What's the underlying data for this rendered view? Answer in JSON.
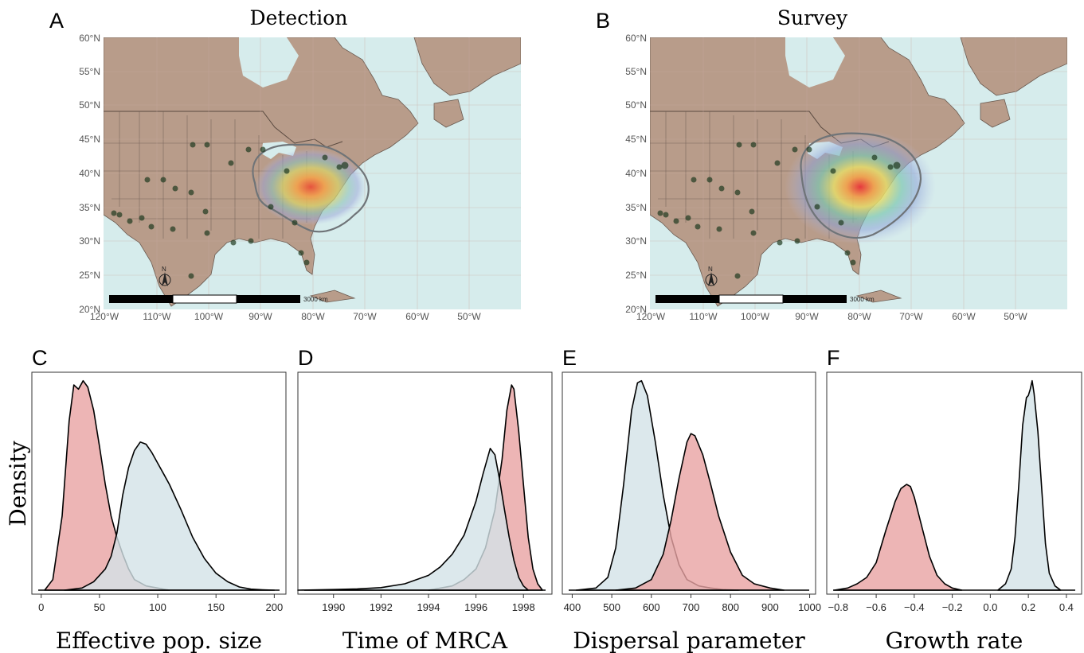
{
  "panels": {
    "map_a": {
      "letter": "A",
      "title": "Detection"
    },
    "map_b": {
      "letter": "B",
      "title": "Survey"
    }
  },
  "map_axes": {
    "lat_labels": [
      "60°N",
      "55°N",
      "50°N",
      "45°N",
      "40°N",
      "35°N",
      "30°N",
      "25°N",
      "20°N"
    ],
    "lon_labels": [
      "120°W",
      "110°W",
      "100°W",
      "90°W",
      "80°W",
      "70°W",
      "60°W",
      "50°W"
    ],
    "scale_bar_label": "3000 km",
    "north_arrow_label": "N"
  },
  "colors": {
    "ocean": "#d6ecec",
    "land": "#b89c8a",
    "border": "#5a4a40",
    "pink_series": "#e8a3a3",
    "blue_series": "#d3e2e7"
  },
  "chart_data": [
    {
      "type": "area",
      "letter": "C",
      "xlabel": "Effective pop. size",
      "ylabel": "Density",
      "xlim": [
        -8,
        210
      ],
      "xticks": [
        0,
        50,
        100,
        150,
        200
      ],
      "tick_labels": [
        "0",
        "50",
        "100",
        "150",
        "200"
      ],
      "series": [
        {
          "color": "#e8a3a3",
          "x": [
            3,
            10,
            18,
            24,
            28,
            32,
            36,
            40,
            45,
            50,
            55,
            60,
            65,
            70,
            75,
            80,
            90,
            100,
            110
          ],
          "y": [
            0,
            0.05,
            0.35,
            0.8,
            0.97,
            0.95,
            0.99,
            0.96,
            0.85,
            0.68,
            0.5,
            0.35,
            0.25,
            0.17,
            0.1,
            0.05,
            0.02,
            0.01,
            0
          ]
        },
        {
          "color": "#d3e2e7",
          "x": [
            20,
            35,
            45,
            55,
            60,
            65,
            70,
            75,
            80,
            85,
            90,
            95,
            100,
            105,
            110,
            115,
            120,
            130,
            140,
            150,
            160,
            170,
            180,
            190,
            200
          ],
          "y": [
            0,
            0.01,
            0.04,
            0.1,
            0.16,
            0.27,
            0.45,
            0.58,
            0.66,
            0.7,
            0.69,
            0.65,
            0.6,
            0.55,
            0.5,
            0.44,
            0.38,
            0.25,
            0.15,
            0.08,
            0.04,
            0.015,
            0.005,
            0.002,
            0
          ]
        }
      ]
    },
    {
      "type": "area",
      "letter": "D",
      "xlabel": "Time of MRCA",
      "xlim": [
        1988.5,
        1999.2
      ],
      "xticks": [
        1990,
        1992,
        1994,
        1996,
        1998
      ],
      "tick_labels": [
        "1990",
        "1992",
        "1994",
        "1996",
        "1998"
      ],
      "series": [
        {
          "color": "#e8a3a3",
          "x": [
            1994,
            1995,
            1995.5,
            1996,
            1996.4,
            1996.8,
            1997.1,
            1997.3,
            1997.5,
            1997.6,
            1997.8,
            1998,
            1998.2,
            1998.4,
            1998.6,
            1998.8
          ],
          "y": [
            0,
            0.02,
            0.05,
            0.1,
            0.2,
            0.38,
            0.62,
            0.85,
            0.97,
            0.95,
            0.75,
            0.5,
            0.25,
            0.1,
            0.03,
            0
          ]
        },
        {
          "color": "#d3e2e7",
          "x": [
            1988.5,
            1990,
            1991,
            1992,
            1993,
            1994,
            1994.5,
            1995,
            1995.5,
            1996,
            1996.3,
            1996.6,
            1996.8,
            1997,
            1997.2,
            1997.4,
            1997.6,
            1997.8,
            1998,
            1998.2
          ],
          "y": [
            0,
            0.003,
            0.006,
            0.012,
            0.03,
            0.07,
            0.11,
            0.17,
            0.26,
            0.42,
            0.55,
            0.67,
            0.64,
            0.52,
            0.38,
            0.25,
            0.14,
            0.06,
            0.02,
            0
          ]
        }
      ]
    },
    {
      "type": "area",
      "letter": "E",
      "xlabel": "Dispersal parameter",
      "xlim": [
        375,
        1015
      ],
      "xticks": [
        400,
        500,
        600,
        700,
        800,
        900,
        1000
      ],
      "tick_labels": [
        "400",
        "500",
        "600",
        "700",
        "800",
        "900",
        "1000"
      ],
      "series": [
        {
          "color": "#d3e2e7",
          "x": [
            410,
            460,
            490,
            510,
            530,
            550,
            565,
            575,
            590,
            610,
            630,
            650,
            670,
            690,
            720,
            750,
            780,
            820
          ],
          "y": [
            0,
            0.01,
            0.06,
            0.2,
            0.5,
            0.85,
            0.98,
            0.99,
            0.92,
            0.7,
            0.45,
            0.25,
            0.12,
            0.05,
            0.02,
            0.01,
            0.003,
            0
          ]
        },
        {
          "color": "#e8a3a3",
          "x": [
            510,
            560,
            600,
            630,
            650,
            670,
            690,
            700,
            710,
            730,
            750,
            770,
            800,
            830,
            860,
            900,
            935
          ],
          "y": [
            0,
            0.01,
            0.05,
            0.17,
            0.33,
            0.53,
            0.7,
            0.74,
            0.73,
            0.64,
            0.5,
            0.35,
            0.18,
            0.07,
            0.03,
            0.01,
            0
          ]
        }
      ]
    },
    {
      "type": "area",
      "letter": "F",
      "xlabel": "Growth rate",
      "xlim": [
        -0.86,
        0.48
      ],
      "xticks": [
        -0.8,
        -0.6,
        -0.4,
        -0.2,
        0.0,
        0.2,
        0.4
      ],
      "tick_labels": [
        "−0.8",
        "−0.6",
        "−0.4",
        "−0.2",
        "0.0",
        "0.2",
        "0.4"
      ],
      "series": [
        {
          "color": "#e8a3a3",
          "x": [
            -0.82,
            -0.75,
            -0.7,
            -0.65,
            -0.6,
            -0.55,
            -0.5,
            -0.47,
            -0.44,
            -0.42,
            -0.4,
            -0.36,
            -0.32,
            -0.28,
            -0.24,
            -0.2,
            -0.15
          ],
          "y": [
            0,
            0.01,
            0.03,
            0.06,
            0.13,
            0.28,
            0.42,
            0.48,
            0.5,
            0.49,
            0.44,
            0.3,
            0.16,
            0.07,
            0.03,
            0.01,
            0
          ]
        },
        {
          "color": "#d3e2e7",
          "x": [
            0.04,
            0.08,
            0.11,
            0.13,
            0.15,
            0.17,
            0.19,
            0.2,
            0.21,
            0.22,
            0.23,
            0.25,
            0.27,
            0.29,
            0.31,
            0.34,
            0.37
          ],
          "y": [
            0,
            0.03,
            0.1,
            0.25,
            0.5,
            0.78,
            0.91,
            0.92,
            0.95,
            0.99,
            0.93,
            0.75,
            0.48,
            0.22,
            0.08,
            0.02,
            0
          ]
        }
      ]
    }
  ]
}
